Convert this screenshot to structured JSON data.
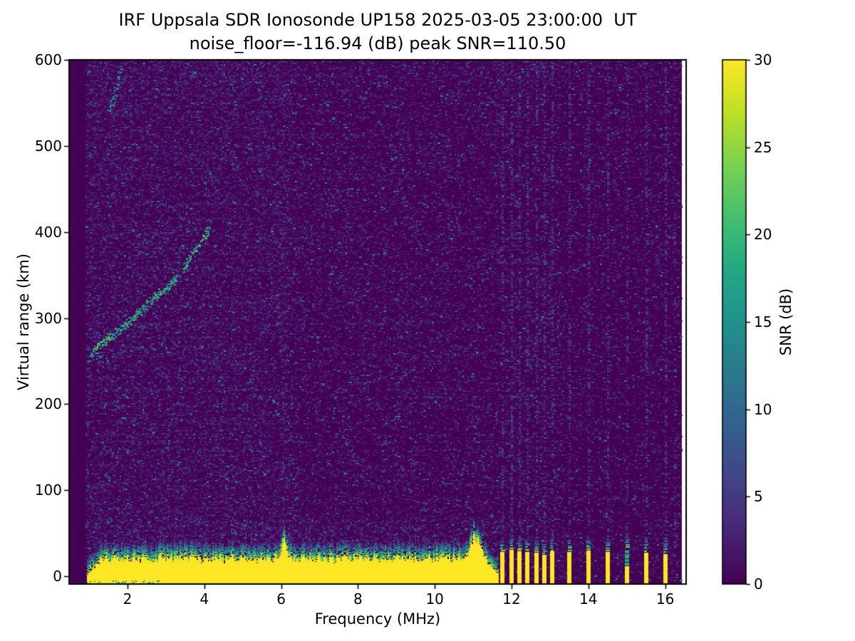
{
  "chart_data": {
    "type": "heatmap",
    "title": "IRF Uppsala SDR Ionosonde UP158 2025-03-05 23:00:00  UT",
    "subtitle": "noise_floor=-116.94 (dB) peak SNR=110.50",
    "xlabel": "Frequency (MHz)",
    "ylabel": "Virtual range (km)",
    "xlim": [
      0.45,
      16.55
    ],
    "ylim": [
      -10,
      600
    ],
    "x_ticks": [
      2,
      4,
      6,
      8,
      10,
      12,
      14,
      16
    ],
    "y_ticks": [
      0,
      100,
      200,
      300,
      400,
      500,
      600
    ],
    "noise_floor_dB": -116.94,
    "peak_snr_dB": 110.5,
    "colorbar": {
      "label": "SNR (dB)",
      "ticks": [
        0,
        5,
        10,
        15,
        20,
        25,
        30
      ],
      "range": [
        0,
        30
      ],
      "colormap": "viridis"
    },
    "colormap_stops": [
      [
        0.0,
        "#440154"
      ],
      [
        0.1,
        "#482475"
      ],
      [
        0.2,
        "#414487"
      ],
      [
        0.3,
        "#355f8d"
      ],
      [
        0.4,
        "#2a788e"
      ],
      [
        0.5,
        "#21918c"
      ],
      [
        0.6,
        "#22a884"
      ],
      [
        0.7,
        "#44bf70"
      ],
      [
        0.8,
        "#7ad151"
      ],
      [
        0.9,
        "#bddf26"
      ],
      [
        1.0,
        "#fde725"
      ]
    ],
    "features": {
      "data_freq_range_mhz": [
        0.95,
        16.42
      ],
      "ground_clutter_band": {
        "freq_start_mhz": 0.95,
        "freq_end_mhz": 11.62,
        "saturated_top_km_mean": 20,
        "fringe_top_km_mean": 42,
        "spike_at_mhz": 6.07,
        "spike_top_km": 42,
        "bump_at_mhz": 11.03,
        "bump_top_km": 48
      },
      "rfi_bars": [
        {
          "f": 11.75,
          "h": 28
        },
        {
          "f": 12.0,
          "h": 31
        },
        {
          "f": 12.2,
          "h": 29
        },
        {
          "f": 12.4,
          "h": 28
        },
        {
          "f": 12.65,
          "h": 27
        },
        {
          "f": 12.85,
          "h": 25
        },
        {
          "f": 13.05,
          "h": 29
        },
        {
          "f": 13.5,
          "h": 28
        },
        {
          "f": 14.0,
          "h": 30
        },
        {
          "f": 14.5,
          "h": 28
        },
        {
          "f": 15.0,
          "h": 12,
          "teal_top_km": 32
        },
        {
          "f": 15.5,
          "h": 27
        },
        {
          "f": 16.0,
          "h": 26
        }
      ],
      "rfi_faint_columns": [
        {
          "f": 11.75,
          "alt": [
            -9,
            600
          ],
          "p": 0.4
        },
        {
          "f": 12.0,
          "alt": [
            -9,
            600
          ],
          "p": 0.4
        },
        {
          "f": 12.2,
          "alt": [
            -9,
            600
          ],
          "p": 0.38
        },
        {
          "f": 12.4,
          "alt": [
            -9,
            600
          ],
          "p": 0.38
        },
        {
          "f": 12.65,
          "alt": [
            -9,
            600
          ],
          "p": 0.38
        },
        {
          "f": 12.85,
          "alt": [
            -9,
            600
          ],
          "p": 0.36
        },
        {
          "f": 13.05,
          "alt": [
            -9,
            600
          ],
          "p": 0.36
        },
        {
          "f": 13.5,
          "alt": [
            -9,
            600
          ],
          "p": 0.4
        },
        {
          "f": 14.0,
          "alt": [
            -9,
            600
          ],
          "p": 0.4
        },
        {
          "f": 14.5,
          "alt": [
            -9,
            600
          ],
          "p": 0.38
        },
        {
          "f": 15.0,
          "alt": [
            -9,
            600
          ],
          "p": 0.36
        },
        {
          "f": 15.5,
          "alt": [
            -9,
            600
          ],
          "p": 0.38
        },
        {
          "f": 16.0,
          "alt": [
            -9,
            600
          ],
          "p": 0.38
        },
        {
          "f": 16.25,
          "alt": [
            -9,
            600
          ],
          "p": 0.22
        },
        {
          "f": 2.08,
          "alt": [
            480,
            597
          ],
          "p": 0.3
        },
        {
          "f": 3.05,
          "alt": [
            75,
            235
          ],
          "p": 0.3
        },
        {
          "f": 3.35,
          "alt": [
            235,
            435
          ],
          "p": 0.25
        },
        {
          "f": 6.05,
          "alt": [
            35,
            600
          ],
          "p": 0.13
        }
      ],
      "echo_trace_points": [
        [
          1.0,
          257
        ],
        [
          1.15,
          264
        ],
        [
          1.3,
          271
        ],
        [
          1.5,
          277
        ],
        [
          1.7,
          284
        ],
        [
          1.9,
          291
        ],
        [
          2.1,
          299
        ],
        [
          2.3,
          308
        ],
        [
          2.5,
          316
        ],
        [
          2.7,
          324
        ],
        [
          2.9,
          331
        ],
        [
          3.05,
          337
        ],
        [
          3.2,
          344
        ],
        [
          3.27,
          348
        ],
        [
          3.42,
          356
        ],
        [
          3.55,
          365
        ],
        [
          3.67,
          374
        ],
        [
          3.78,
          382
        ],
        [
          3.88,
          390
        ],
        [
          3.97,
          396
        ],
        [
          4.05,
          400
        ],
        [
          4.12,
          403
        ]
      ],
      "echo_trace_gap_mhz": [
        3.27,
        3.42
      ],
      "second_hop_cluster": {
        "freq_mhz": [
          1.5,
          1.83
        ],
        "alt_km": [
          538,
          587
        ]
      }
    }
  }
}
